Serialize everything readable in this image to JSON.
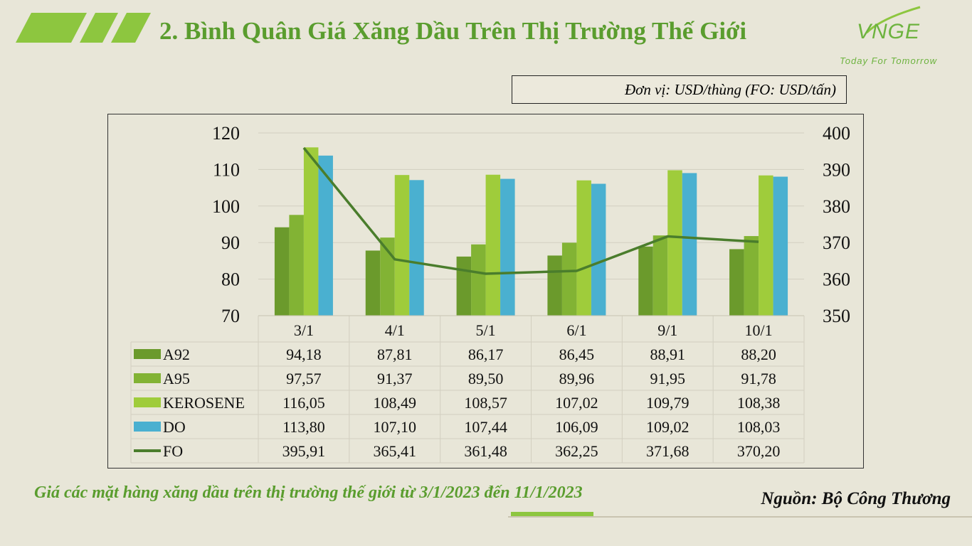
{
  "title": "2. Bình Quân Giá Xăng Dầu Trên Thị Trường Thế Giới",
  "logo": {
    "word": "VNGE",
    "tagline": "Today For Tomorrow"
  },
  "unit_note": "Đơn vị: USD/thùng (FO: USD/tấn)",
  "caption": "Giá các mặt hàng xăng dầu trên thị trường thế giới từ 3/1/2023 đến 11/1/2023",
  "source": "Nguồn: Bộ Công Thương",
  "colors": {
    "A92": "#6b9a2c",
    "A95": "#82b334",
    "KEROSENE": "#9fcc3b",
    "DO": "#4ab0d0",
    "FO": "#4a7d2c",
    "accent": "#5a9d2e"
  },
  "chart_data": {
    "type": "bar",
    "categories": [
      "3/1",
      "4/1",
      "5/1",
      "6/1",
      "9/1",
      "10/1"
    ],
    "y_left": {
      "min": 70,
      "max": 120,
      "ticks": [
        "70",
        "80",
        "90",
        "100",
        "110",
        "120"
      ]
    },
    "y_right": {
      "min": 350,
      "max": 400,
      "ticks": [
        "350",
        "360",
        "370",
        "380",
        "390",
        "400"
      ]
    },
    "series": [
      {
        "name": "A92",
        "type": "bar",
        "axis": "left",
        "values": [
          94.18,
          87.81,
          86.17,
          86.45,
          88.91,
          88.2
        ],
        "labels": [
          "94,18",
          "87,81",
          "86,17",
          "86,45",
          "88,91",
          "88,20"
        ]
      },
      {
        "name": "A95",
        "type": "bar",
        "axis": "left",
        "values": [
          97.57,
          91.37,
          89.5,
          89.96,
          91.95,
          91.78
        ],
        "labels": [
          "97,57",
          "91,37",
          "89,50",
          "89,96",
          "91,95",
          "91,78"
        ]
      },
      {
        "name": "KEROSENE",
        "type": "bar",
        "axis": "left",
        "values": [
          116.05,
          108.49,
          108.57,
          107.02,
          109.79,
          108.38
        ],
        "labels": [
          "116,05",
          "108,49",
          "108,57",
          "107,02",
          "109,79",
          "108,38"
        ]
      },
      {
        "name": "DO",
        "type": "bar",
        "axis": "left",
        "values": [
          113.8,
          107.1,
          107.44,
          106.09,
          109.02,
          108.03
        ],
        "labels": [
          "113,80",
          "107,10",
          "107,44",
          "106,09",
          "109,02",
          "108,03"
        ]
      },
      {
        "name": "FO",
        "type": "line",
        "axis": "right",
        "values": [
          395.91,
          365.41,
          361.48,
          362.25,
          371.68,
          370.2
        ],
        "labels": [
          "395,91",
          "365,41",
          "361,48",
          "362,25",
          "371,68",
          "370,20"
        ]
      }
    ],
    "legend": "data-table"
  }
}
